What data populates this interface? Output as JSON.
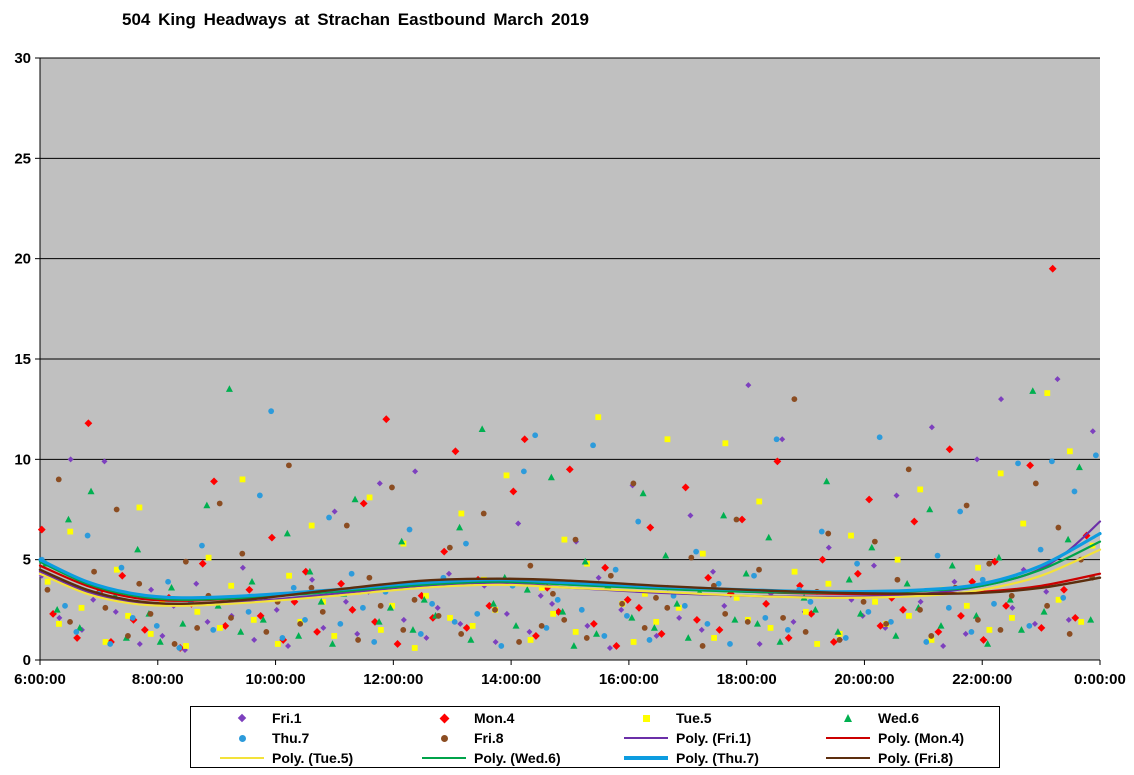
{
  "chart_data": {
    "type": "scatter",
    "title": "504 King Headways at Strachan Eastbound March 2019",
    "plot_bg": "#C0C0C0",
    "grid": "horizontal",
    "x_axis": {
      "min": 6,
      "max": 24,
      "tick_step_hours": 2,
      "tick_labels": [
        "6:00:00",
        "8:00:00",
        "10:00:00",
        "12:00:00",
        "14:00:00",
        "16:00:00",
        "18:00:00",
        "20:00:00",
        "22:00:00",
        "0:00:00"
      ]
    },
    "y_axis": {
      "min": 0,
      "max": 30,
      "tick_step": 5,
      "tick_labels": [
        "0",
        "5",
        "10",
        "15",
        "20",
        "25",
        "30"
      ]
    },
    "series": [
      {
        "name": "Fri.1",
        "marker": "diamond-small",
        "color": "#7D40BE",
        "seed": 0,
        "x_start": 6.02,
        "x_step": 0.225,
        "y": [
          4.2,
          2.1,
          10.0,
          1.5,
          3.0,
          9.9,
          2.4,
          0.8,
          3.5,
          1.2,
          2.7,
          0.5,
          3.8,
          1.9,
          2.2,
          4.6,
          1.0,
          3.1,
          2.5,
          0.7,
          4.0,
          1.6,
          7.4,
          2.9,
          1.3,
          3.4,
          8.8,
          2.0,
          9.4,
          1.1,
          2.6,
          4.3,
          1.8,
          3.7,
          0.9,
          2.3,
          6.8,
          1.4,
          3.2,
          2.8,
          5.9,
          1.7,
          4.1,
          0.6,
          2.5,
          8.7,
          1.2,
          3.6,
          2.1,
          7.2,
          1.5,
          4.4,
          2.7,
          13.7,
          0.8,
          3.3,
          11.0,
          1.9,
          2.4,
          5.6,
          1.0,
          3.0,
          2.2,
          4.7,
          1.6,
          8.2,
          2.9,
          11.6,
          0.7,
          3.9,
          1.3,
          10.0,
          13.0,
          2.6,
          4.5,
          1.8,
          3.4,
          14.0,
          2.0,
          11.4
        ]
      },
      {
        "name": "Mon.4",
        "marker": "diamond",
        "color": "#FF0000",
        "seed": 3,
        "x_start": 6.08,
        "x_step": 0.225,
        "y": [
          6.5,
          2.3,
          1.1,
          11.8,
          3.4,
          0.9,
          4.2,
          2.0,
          1.5,
          3.1,
          0.6,
          2.8,
          4.8,
          8.9,
          1.7,
          3.5,
          2.2,
          6.1,
          1.0,
          2.9,
          4.4,
          1.4,
          3.8,
          2.5,
          7.8,
          1.9,
          12.0,
          0.8,
          3.2,
          2.1,
          5.4,
          10.4,
          1.6,
          4.0,
          2.7,
          8.4,
          11.0,
          1.2,
          3.6,
          2.4,
          9.5,
          1.8,
          4.6,
          0.7,
          3.0,
          2.6,
          6.6,
          1.3,
          8.6,
          2.0,
          4.1,
          1.5,
          3.3,
          7.0,
          2.8,
          9.9,
          1.1,
          3.7,
          2.3,
          5.0,
          0.9,
          4.3,
          8.0,
          1.7,
          3.1,
          2.5,
          6.9,
          1.4,
          10.5,
          2.2,
          3.9,
          1.0,
          4.9,
          2.7,
          9.7,
          1.6,
          19.5,
          3.5,
          2.1,
          6.2
        ]
      },
      {
        "name": "Tue.5",
        "marker": "square",
        "color": "#FFFF00",
        "seed": 6,
        "x_start": 6.13,
        "x_step": 0.225,
        "y": [
          3.9,
          1.8,
          6.4,
          2.6,
          0.9,
          4.5,
          2.2,
          7.6,
          1.3,
          3.0,
          0.7,
          2.4,
          5.1,
          1.6,
          3.7,
          9.0,
          2.0,
          0.8,
          4.2,
          1.9,
          6.7,
          2.9,
          1.2,
          3.4,
          8.1,
          1.5,
          2.7,
          5.8,
          0.6,
          3.2,
          2.1,
          7.3,
          1.7,
          4.0,
          2.5,
          9.2,
          1.0,
          3.6,
          2.3,
          6.0,
          1.4,
          4.8,
          12.1,
          2.8,
          0.9,
          3.3,
          1.9,
          11.0,
          2.6,
          5.3,
          1.1,
          10.8,
          3.1,
          2.0,
          7.9,
          1.6,
          4.4,
          2.4,
          0.8,
          3.8,
          1.3,
          6.2,
          2.9,
          1.8,
          5.0,
          2.2,
          8.5,
          1.0,
          3.5,
          2.7,
          4.6,
          1.5,
          9.3,
          2.1,
          6.8,
          13.3,
          3.0,
          10.4,
          1.9,
          5.7
        ]
      },
      {
        "name": "Wed.6",
        "marker": "triangle",
        "color": "#00B050",
        "seed": 9,
        "x_start": 6.05,
        "x_step": 0.225,
        "y": [
          4.8,
          2.5,
          7.0,
          1.6,
          8.4,
          3.2,
          1.1,
          5.5,
          2.3,
          0.9,
          3.6,
          1.8,
          7.7,
          2.7,
          13.5,
          1.4,
          3.9,
          2.0,
          6.3,
          1.2,
          4.4,
          2.9,
          0.8,
          3.3,
          8.0,
          1.9,
          2.6,
          5.9,
          1.5,
          3.0,
          2.2,
          6.6,
          1.0,
          11.5,
          2.8,
          4.1,
          1.7,
          3.5,
          9.1,
          2.4,
          0.7,
          4.9,
          1.3,
          3.7,
          2.1,
          8.3,
          1.6,
          5.2,
          2.8,
          1.1,
          3.4,
          7.2,
          2.0,
          4.3,
          1.8,
          6.1,
          0.9,
          3.1,
          2.5,
          8.9,
          1.4,
          4.0,
          2.3,
          5.6,
          1.2,
          3.8,
          2.6,
          7.5,
          1.7,
          4.7,
          2.2,
          0.8,
          5.1,
          3.0,
          1.5,
          13.4,
          2.4,
          6.0,
          9.6,
          2.0
        ]
      },
      {
        "name": "Thu.7",
        "marker": "circle",
        "color": "#2D9BDB",
        "seed": 1,
        "x_start": 6.1,
        "x_step": 0.225,
        "y": [
          5.0,
          2.7,
          1.4,
          6.2,
          3.3,
          0.8,
          4.6,
          2.1,
          1.7,
          3.9,
          0.6,
          2.9,
          5.7,
          1.5,
          3.1,
          2.4,
          8.2,
          12.4,
          1.1,
          3.6,
          2.0,
          7.1,
          1.8,
          4.3,
          2.6,
          0.9,
          3.4,
          6.5,
          1.3,
          2.8,
          4.1,
          1.9,
          5.8,
          2.3,
          0.7,
          3.7,
          9.4,
          11.2,
          1.6,
          3.0,
          2.5,
          10.7,
          1.2,
          4.5,
          2.2,
          6.9,
          1.0,
          3.2,
          2.7,
          5.4,
          1.8,
          3.8,
          0.8,
          4.2,
          2.1,
          11.0,
          1.5,
          3.5,
          2.9,
          6.4,
          1.1,
          4.8,
          2.4,
          11.1,
          1.9,
          3.3,
          0.9,
          5.2,
          2.6,
          7.4,
          1.4,
          4.0,
          2.8,
          9.8,
          1.7,
          5.5,
          9.9,
          3.1,
          8.4,
          10.2
        ]
      },
      {
        "name": "Fri.8",
        "marker": "circle",
        "color": "#8B4D22",
        "seed": 4,
        "x_start": 6.16,
        "x_step": 0.225,
        "y": [
          3.5,
          9.0,
          1.9,
          4.4,
          2.6,
          7.5,
          1.2,
          3.8,
          2.3,
          0.8,
          4.9,
          1.6,
          3.2,
          7.8,
          2.1,
          5.3,
          1.4,
          2.9,
          9.7,
          1.8,
          3.6,
          2.4,
          6.7,
          1.0,
          4.1,
          2.7,
          8.6,
          1.5,
          3.0,
          2.2,
          5.6,
          1.3,
          3.9,
          7.3,
          2.5,
          0.9,
          4.7,
          1.7,
          3.3,
          2.0,
          6.0,
          1.1,
          4.2,
          2.8,
          8.8,
          1.6,
          3.1,
          2.6,
          5.1,
          0.7,
          3.7,
          2.3,
          7.0,
          1.9,
          4.5,
          2.1,
          13.0,
          1.4,
          3.4,
          6.3,
          1.0,
          2.9,
          5.9,
          1.8,
          4.0,
          9.5,
          2.5,
          1.2,
          3.6,
          7.7,
          2.0,
          4.8,
          1.5,
          3.2,
          8.8,
          2.7,
          6.6,
          1.3,
          5.0,
          4.1
        ]
      }
    ],
    "trendlines": [
      {
        "name": "Poly. (Fri.1)",
        "color": "#6B2FA8",
        "width": 2.2,
        "points": [
          [
            6,
            4.4
          ],
          [
            6.8,
            3.4
          ],
          [
            7.6,
            2.85
          ],
          [
            8.4,
            2.75
          ],
          [
            9.5,
            2.9
          ],
          [
            11,
            3.3
          ],
          [
            12.5,
            3.7
          ],
          [
            13.8,
            3.85
          ],
          [
            15,
            3.6
          ],
          [
            16.5,
            3.35
          ],
          [
            18,
            3.2
          ],
          [
            19.5,
            3.15
          ],
          [
            21,
            3.3
          ],
          [
            22,
            3.7
          ],
          [
            22.8,
            4.3
          ],
          [
            23.4,
            5.3
          ],
          [
            24,
            6.9
          ]
        ]
      },
      {
        "name": "Poly. (Mon.4)",
        "color": "#CC0000",
        "width": 2.2,
        "points": [
          [
            6,
            4.7
          ],
          [
            6.8,
            3.7
          ],
          [
            7.6,
            3.1
          ],
          [
            8.4,
            2.95
          ],
          [
            9.5,
            3.1
          ],
          [
            11,
            3.45
          ],
          [
            12.5,
            3.8
          ],
          [
            13.8,
            3.95
          ],
          [
            15,
            3.8
          ],
          [
            16.5,
            3.6
          ],
          [
            18,
            3.4
          ],
          [
            19.5,
            3.3
          ],
          [
            21,
            3.3
          ],
          [
            22,
            3.4
          ],
          [
            23,
            3.7
          ],
          [
            24,
            4.3
          ]
        ]
      },
      {
        "name": "Poly. (Tue.5)",
        "color": "#F3E23A",
        "width": 2.2,
        "points": [
          [
            6,
            4.3
          ],
          [
            6.8,
            3.3
          ],
          [
            7.6,
            2.8
          ],
          [
            8.4,
            2.7
          ],
          [
            9.5,
            2.85
          ],
          [
            11,
            3.2
          ],
          [
            12.5,
            3.6
          ],
          [
            13.8,
            3.75
          ],
          [
            15,
            3.6
          ],
          [
            16.5,
            3.4
          ],
          [
            18,
            3.2
          ],
          [
            19.5,
            3.1
          ],
          [
            21,
            3.2
          ],
          [
            22,
            3.5
          ],
          [
            23,
            4.2
          ],
          [
            24,
            5.5
          ]
        ]
      },
      {
        "name": "Poly. (Wed.6)",
        "color": "#00A34A",
        "width": 2.2,
        "points": [
          [
            6,
            4.9
          ],
          [
            6.8,
            3.8
          ],
          [
            7.6,
            3.2
          ],
          [
            8.4,
            3.0
          ],
          [
            9.5,
            3.1
          ],
          [
            11,
            3.4
          ],
          [
            12.5,
            3.75
          ],
          [
            13.8,
            3.9
          ],
          [
            15,
            3.75
          ],
          [
            16.5,
            3.55
          ],
          [
            18,
            3.4
          ],
          [
            19.5,
            3.35
          ],
          [
            21,
            3.45
          ],
          [
            22,
            3.7
          ],
          [
            23,
            4.5
          ],
          [
            24,
            5.9
          ]
        ]
      },
      {
        "name": "Poly. (Thu.7)",
        "color": "#0D9CE0",
        "width": 3.2,
        "points": [
          [
            6,
            5.0
          ],
          [
            6.8,
            3.9
          ],
          [
            7.6,
            3.3
          ],
          [
            8.4,
            3.1
          ],
          [
            9.5,
            3.2
          ],
          [
            11,
            3.5
          ],
          [
            12.5,
            3.85
          ],
          [
            13.8,
            4.0
          ],
          [
            15,
            3.85
          ],
          [
            16.5,
            3.65
          ],
          [
            18,
            3.5
          ],
          [
            19.5,
            3.4
          ],
          [
            21,
            3.5
          ],
          [
            22,
            3.8
          ],
          [
            23,
            4.7
          ],
          [
            24,
            6.3
          ]
        ]
      },
      {
        "name": "Poly. (Fri.8)",
        "color": "#5C2E0E",
        "width": 2.4,
        "points": [
          [
            6,
            4.5
          ],
          [
            6.8,
            3.5
          ],
          [
            7.6,
            2.95
          ],
          [
            8.4,
            2.8
          ],
          [
            9.5,
            3.0
          ],
          [
            11,
            3.5
          ],
          [
            12.5,
            3.95
          ],
          [
            13.8,
            4.05
          ],
          [
            15,
            3.95
          ],
          [
            16.5,
            3.7
          ],
          [
            18,
            3.5
          ],
          [
            19.5,
            3.35
          ],
          [
            21,
            3.3
          ],
          [
            22,
            3.35
          ],
          [
            23,
            3.6
          ],
          [
            24,
            4.1
          ]
        ]
      }
    ],
    "legend": [
      {
        "label": "Fri.1"
      },
      {
        "label": "Mon.4"
      },
      {
        "label": "Tue.5"
      },
      {
        "label": "Wed.6"
      },
      {
        "label": "Thu.7"
      },
      {
        "label": "Fri.8"
      },
      {
        "label": "Poly. (Fri.1)"
      },
      {
        "label": "Poly. (Mon.4)"
      },
      {
        "label": "Poly. (Tue.5)"
      },
      {
        "label": "Poly. (Wed.6)"
      },
      {
        "label": "Poly. (Thu.7)"
      },
      {
        "label": "Poly. (Fri.8)"
      }
    ]
  }
}
